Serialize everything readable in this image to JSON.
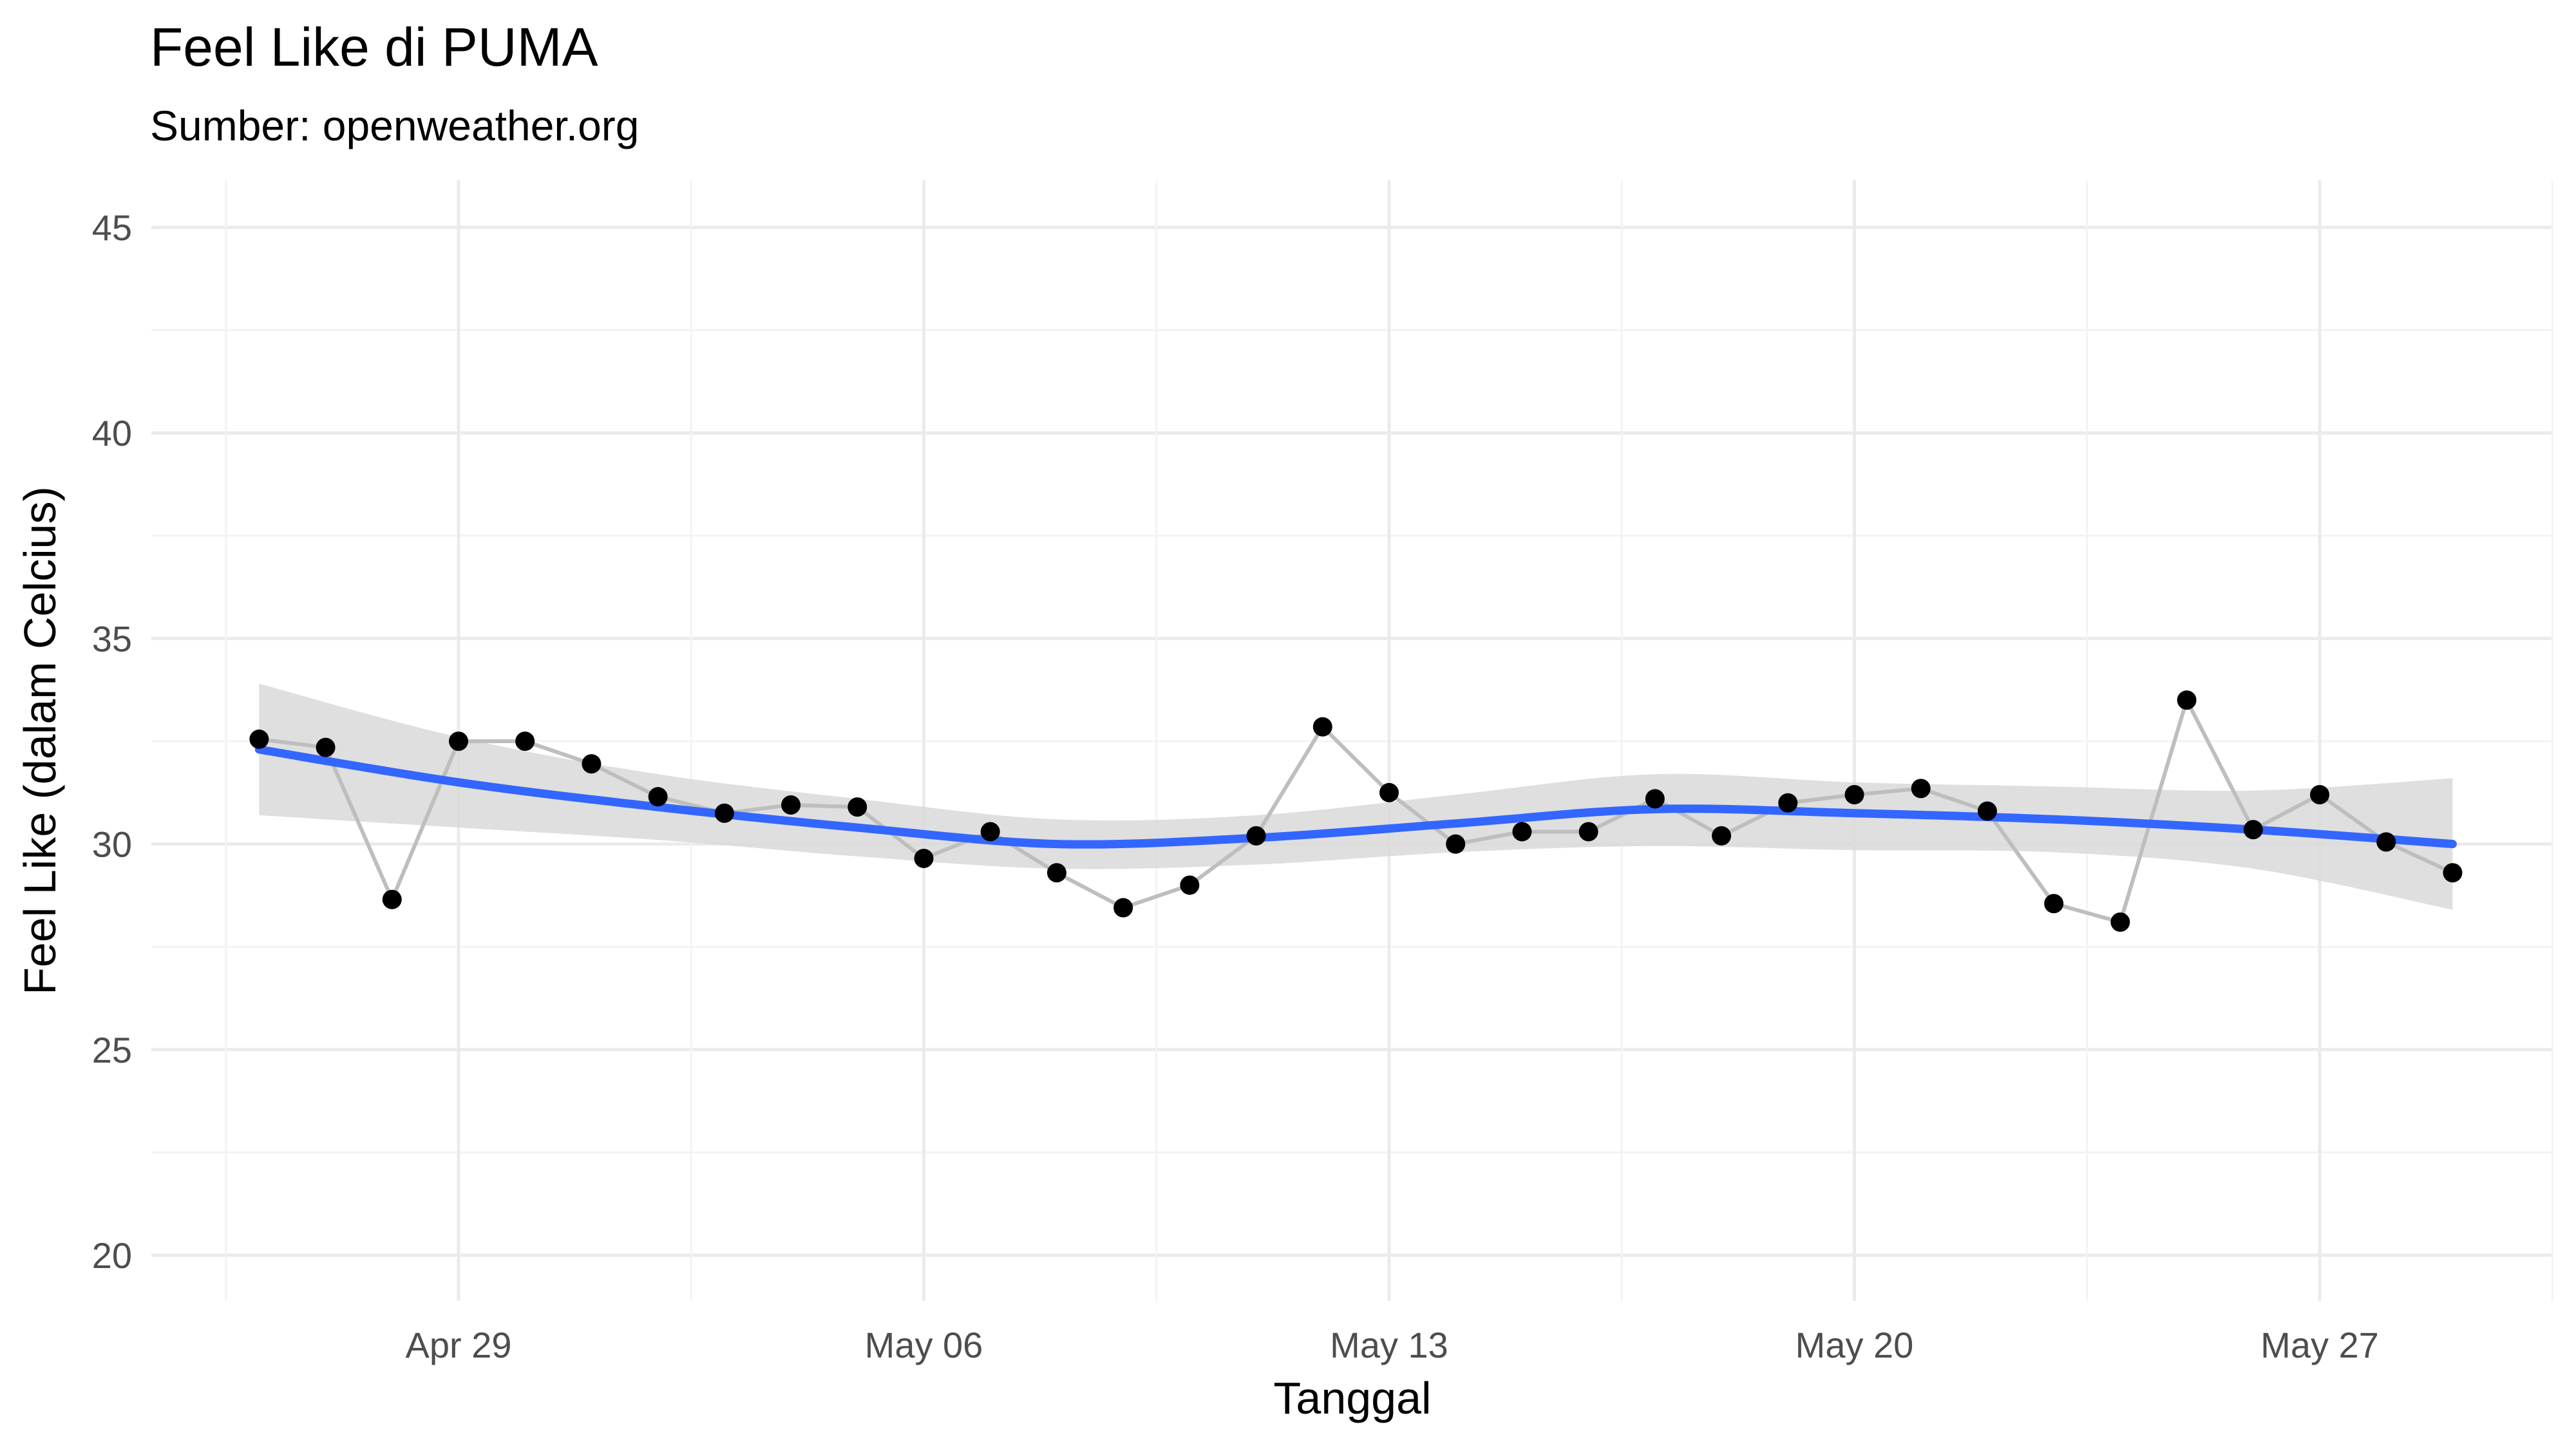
{
  "chart_data": {
    "type": "line",
    "title": "Feel Like di PUMA",
    "subtitle": "Sumber: openweather.org",
    "xlabel": "Tanggal",
    "ylabel": "Feel Like (dalam Celcius)",
    "x_ticks": [
      "Apr 29",
      "May 06",
      "May 13",
      "May 20",
      "May 27"
    ],
    "y_ticks": [
      20,
      25,
      30,
      35,
      40,
      45
    ],
    "ylim": [
      20,
      45
    ],
    "grid": true,
    "colors": {
      "observed_line": "#bebebe",
      "points": "#000000",
      "smooth_line": "#3366ff",
      "confidence_band": "#d9d9d9"
    },
    "series": [
      {
        "type": "line+points",
        "x": [
          "Apr 26",
          "Apr 27",
          "Apr 28",
          "Apr 29",
          "Apr 30",
          "May 01",
          "May 02",
          "May 03",
          "May 04",
          "May 05",
          "May 06",
          "May 07",
          "May 08",
          "May 09",
          "May 10",
          "May 11",
          "May 12",
          "May 13",
          "May 14",
          "May 15",
          "May 16",
          "May 17",
          "May 18",
          "May 19",
          "May 20",
          "May 21",
          "May 22",
          "May 23",
          "May 24",
          "May 25",
          "May 26",
          "May 27",
          "May 28",
          "May 29"
        ],
        "values": [
          32.55,
          32.35,
          28.65,
          32.5,
          32.5,
          31.95,
          31.15,
          30.75,
          30.95,
          30.9,
          29.65,
          30.3,
          29.3,
          28.45,
          29.0,
          30.2,
          32.85,
          31.25,
          30.0,
          30.3,
          30.3,
          31.1,
          30.2,
          31.0,
          31.2,
          31.35,
          30.8,
          28.55,
          28.1,
          33.5,
          30.35,
          31.2,
          30.05,
          29.3
        ]
      },
      {
        "type": "smooth",
        "x": [
          "Apr 26",
          "Apr 29",
          "May 02",
          "May 05",
          "May 08",
          "May 11",
          "May 14",
          "May 17",
          "May 20",
          "May 23",
          "May 26",
          "May 29"
        ],
        "values": [
          32.3,
          31.5,
          30.9,
          30.4,
          30.0,
          30.15,
          30.5,
          30.85,
          30.75,
          30.6,
          30.35,
          30.0
        ],
        "lower": [
          30.7,
          30.4,
          30.1,
          29.7,
          29.4,
          29.5,
          29.8,
          29.95,
          29.85,
          29.8,
          29.4,
          28.4
        ],
        "upper": [
          33.9,
          32.6,
          31.7,
          31.1,
          30.6,
          30.7,
          31.2,
          31.7,
          31.5,
          31.4,
          31.3,
          31.6
        ]
      }
    ]
  }
}
